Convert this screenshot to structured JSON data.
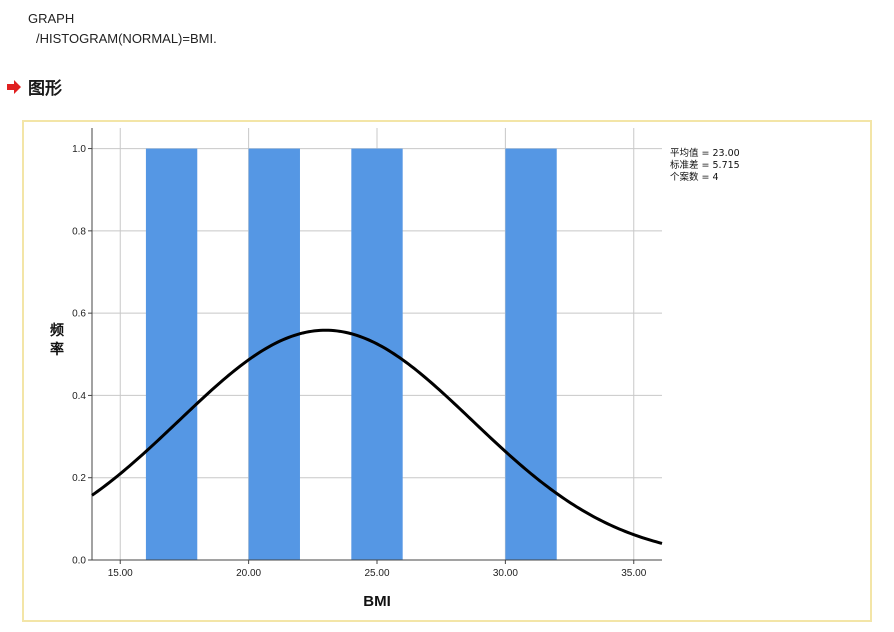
{
  "syntax": {
    "line1": "GRAPH",
    "line2": "/HISTOGRAM(NORMAL)=BMI."
  },
  "section": {
    "icon": "red-arrow-icon",
    "title": "图形"
  },
  "colors": {
    "bar": "#5597e4",
    "curve": "#000000",
    "frame": "#f3e5a7",
    "grid": "#c8c8c8",
    "arrow": "#e02020"
  },
  "chart_data": {
    "type": "bar",
    "xlabel": "BMI",
    "ylabel": "频率",
    "xlim": [
      13.9,
      36.1
    ],
    "ylim": [
      0,
      1.05
    ],
    "xticks": [
      15,
      20,
      25,
      30,
      35
    ],
    "xtick_labels": [
      "15.00",
      "20.00",
      "25.00",
      "30.00",
      "35.00"
    ],
    "yticks": [
      0,
      0.2,
      0.4,
      0.6,
      0.8,
      1.0
    ],
    "ytick_labels": [
      "0.0",
      "0.2",
      "0.4",
      "0.6",
      "0.8",
      "1.0"
    ],
    "bins": [
      {
        "start": 16,
        "end": 18,
        "count": 1
      },
      {
        "start": 20,
        "end": 22,
        "count": 1
      },
      {
        "start": 24,
        "end": 26,
        "count": 1
      },
      {
        "start": 30,
        "end": 32,
        "count": 1
      }
    ],
    "normal_curve": {
      "mean": 23.0,
      "sd": 5.715,
      "n": 4,
      "bin_width": 2
    },
    "grid": true,
    "stats_labels": [
      "平均值 = 23.00",
      "标准差 = 5.715",
      "个案数 = 4"
    ]
  }
}
